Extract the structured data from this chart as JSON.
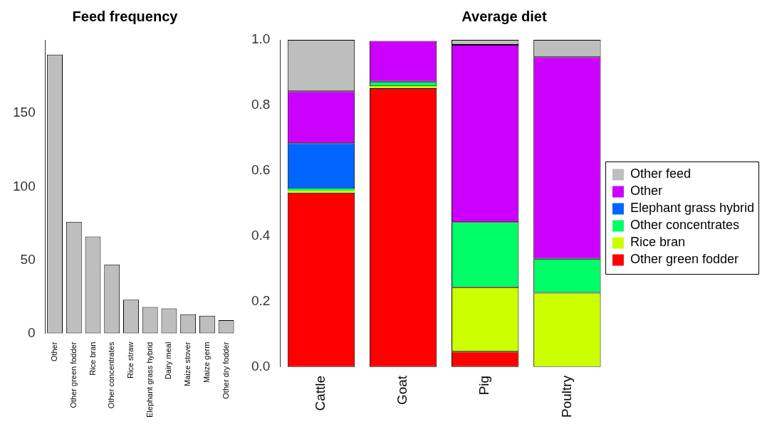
{
  "chart_data": [
    {
      "type": "bar",
      "title": "Feed frequency",
      "categories": [
        "Other",
        "Other green fodder",
        "Rice bran",
        "Other concentrates",
        "Rice straw",
        "Elephant grass hybrid",
        "Dairy meal",
        "Maize stover",
        "Maize germ",
        "Other dry fodder"
      ],
      "values": [
        190,
        76,
        66,
        47,
        23,
        18,
        17,
        13,
        12,
        9
      ],
      "color": "#bebebe",
      "ylim": [
        0,
        200
      ],
      "yticks": [
        0,
        50,
        100,
        150
      ],
      "grid": false,
      "legend": false
    },
    {
      "type": "bar",
      "title": "Average diet",
      "categories": [
        "Cattle",
        "Goat",
        "Pig",
        "Poultry"
      ],
      "stacked": true,
      "series": [
        {
          "name": "Other green fodder",
          "color": "#ff0000",
          "values": [
            0.533,
            0.852,
            0.047,
            0
          ]
        },
        {
          "name": "Rice bran",
          "color": "#ccff00",
          "values": [
            0.006,
            0.006,
            0.197,
            0.227
          ]
        },
        {
          "name": "Other concentrates",
          "color": "#00ff66",
          "values": [
            0.006,
            0.014,
            0.199,
            0.104
          ]
        },
        {
          "name": "Elephant grass hybrid",
          "color": "#0066ff",
          "values": [
            0.139,
            0,
            0,
            0
          ]
        },
        {
          "name": "Other",
          "color": "#cc00ff",
          "values": [
            0.159,
            0.125,
            0.542,
            0.616
          ]
        },
        {
          "name": "Other feed",
          "color": "#bebebe",
          "values": [
            0.157,
            null,
            0.015,
            0.053
          ]
        }
      ],
      "ylim": [
        0,
        1
      ],
      "yticks": [
        {
          "value": 0,
          "label": "0.0"
        },
        {
          "value": 0.2,
          "label": "0.2"
        },
        {
          "value": 0.4,
          "label": "0.4"
        },
        {
          "value": 0.6,
          "label": "0.6"
        },
        {
          "value": 0.8,
          "label": "0.8"
        },
        {
          "value": 1,
          "label": "1.0"
        }
      ],
      "grid": false,
      "legend": "right"
    }
  ]
}
